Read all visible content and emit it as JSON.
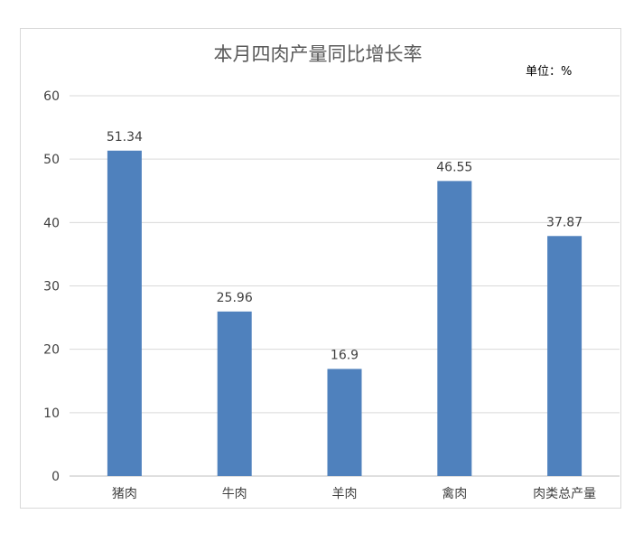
{
  "chart_data": {
    "type": "bar",
    "title": "本月四肉产量同比增长率",
    "unit_label": "单位：%",
    "categories": [
      "猪肉",
      "牛肉",
      "羊肉",
      "禽肉",
      "肉类总产量"
    ],
    "values": [
      51.34,
      25.96,
      16.9,
      46.55,
      37.87
    ],
    "value_labels": [
      "51.34",
      "25.96",
      "16.9",
      "46.55",
      "37.87"
    ],
    "ylim": [
      0,
      60
    ],
    "yticks": [
      0,
      10,
      20,
      30,
      40,
      50,
      60
    ],
    "xlabel": "",
    "ylabel": "",
    "grid": true,
    "legend": "none",
    "colors": {
      "bar": "#4f81bd",
      "grid": "#d9d9d9",
      "axis": "#bfbfbf"
    }
  }
}
